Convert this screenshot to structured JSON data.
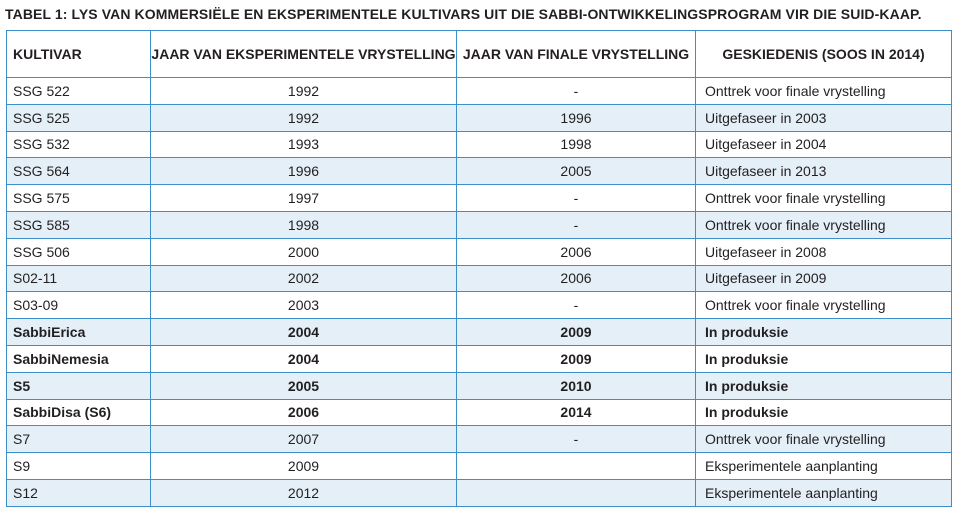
{
  "caption": "TABEL 1: LYS VAN KOMMERSIËLE EN EKSPERIMENTELE KULTIVARS UIT DIE SABBI-ONTWIKKELINGSPROGRAM VIR DIE SUID-KAAP.",
  "headers": [
    "KULTIVAR",
    "JAAR VAN EKSPERIMENTELE VRYSTELLING",
    "JAAR VAN FINALE VRYSTELLING",
    "GESKIEDENIS (SOOS IN 2014)"
  ],
  "rows": [
    {
      "kultivar": "SSG 522",
      "experimental": "1992",
      "final": "-",
      "history": "Onttrek voor finale vrystelling",
      "bold": false
    },
    {
      "kultivar": "SSG 525",
      "experimental": "1992",
      "final": "1996",
      "history": "Uitgefaseer in 2003",
      "bold": false
    },
    {
      "kultivar": "SSG 532",
      "experimental": "1993",
      "final": "1998",
      "history": "Uitgefaseer in 2004",
      "bold": false
    },
    {
      "kultivar": "SSG 564",
      "experimental": "1996",
      "final": "2005",
      "history": "Uitgefaseer in 2013",
      "bold": false
    },
    {
      "kultivar": "SSG 575",
      "experimental": "1997",
      "final": "-",
      "history": "Onttrek voor finale vrystelling",
      "bold": false
    },
    {
      "kultivar": "SSG 585",
      "experimental": "1998",
      "final": "-",
      "history": "Onttrek voor finale vrystelling",
      "bold": false
    },
    {
      "kultivar": "SSG 506",
      "experimental": "2000",
      "final": "2006",
      "history": "Uitgefaseer in 2008",
      "bold": false
    },
    {
      "kultivar": "S02-11",
      "experimental": "2002",
      "final": "2006",
      "history": "Uitgefaseer in 2009",
      "bold": false
    },
    {
      "kultivar": "S03-09",
      "experimental": "2003",
      "final": "-",
      "history": "Onttrek voor finale vrystelling",
      "bold": false
    },
    {
      "kultivar": "SabbiErica",
      "experimental": "2004",
      "final": "2009",
      "history": "In produksie",
      "bold": true
    },
    {
      "kultivar": "SabbiNemesia",
      "experimental": "2004",
      "final": "2009",
      "history": "In produksie",
      "bold": true
    },
    {
      "kultivar": "S5",
      "experimental": "2005",
      "final": "2010",
      "history": "In produksie",
      "bold": true
    },
    {
      "kultivar": "SabbiDisa (S6)",
      "experimental": "2006",
      "final": "2014",
      "history": "In produksie",
      "bold": true
    },
    {
      "kultivar": "S7",
      "experimental": "2007",
      "final": "-",
      "history": "Onttrek voor finale vrystelling",
      "bold": false
    },
    {
      "kultivar": "S9",
      "experimental": "2009",
      "final": "",
      "history": "Eksperimentele aanplanting",
      "bold": false
    },
    {
      "kultivar": "S12",
      "experimental": "2012",
      "final": "",
      "history": "Eksperimentele aanplanting",
      "bold": false
    }
  ],
  "colors": {
    "border": "#3d8fc9",
    "alt_row": "#e4eff8",
    "text": "#231f20"
  }
}
